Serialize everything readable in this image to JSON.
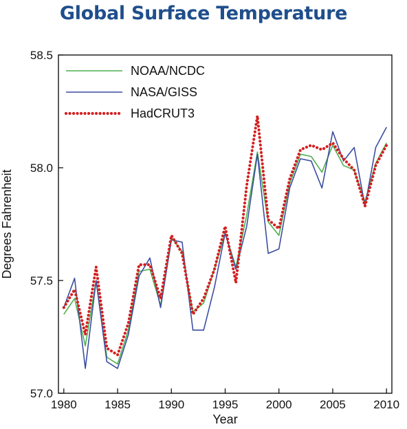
{
  "chart_data": {
    "type": "line",
    "title": "Global Surface Temperature",
    "xlabel": "Year",
    "ylabel": "Degrees Fahrenheit",
    "xlim": [
      1979.5,
      2010.5
    ],
    "ylim": [
      57.0,
      58.5
    ],
    "x_ticks": [
      1980,
      1985,
      1990,
      1995,
      2000,
      2005,
      2010
    ],
    "y_ticks": [
      57.0,
      57.5,
      58.0,
      58.5
    ],
    "x_tick_labels": [
      "1980",
      "1985",
      "1990",
      "1995",
      "2000",
      "2005",
      "2010"
    ],
    "y_tick_labels": [
      "57.0",
      "57.5",
      "58.0",
      "58.5"
    ],
    "legend_position": "top-left",
    "x": [
      1980,
      1981,
      1982,
      1983,
      1984,
      1985,
      1986,
      1987,
      1988,
      1989,
      1990,
      1991,
      1992,
      1993,
      1994,
      1995,
      1996,
      1997,
      1998,
      1999,
      2000,
      2001,
      2002,
      2003,
      2004,
      2005,
      2006,
      2007,
      2008,
      2009,
      2010
    ],
    "series": [
      {
        "name": "NOAA/NCDC",
        "color": "#4caf50",
        "style": "solid",
        "values": [
          57.35,
          57.42,
          57.21,
          57.5,
          57.16,
          57.13,
          57.28,
          57.54,
          57.55,
          57.39,
          57.69,
          57.63,
          57.36,
          57.4,
          57.55,
          57.71,
          57.56,
          57.79,
          58.07,
          57.76,
          57.7,
          57.93,
          58.06,
          58.05,
          57.98,
          58.1,
          58.01,
          57.99,
          57.85,
          58.02,
          58.11
        ]
      },
      {
        "name": "NASA/GISS",
        "color": "#3b4da0",
        "style": "solid",
        "values": [
          57.38,
          57.51,
          57.11,
          57.5,
          57.14,
          57.11,
          57.26,
          57.52,
          57.6,
          57.38,
          57.68,
          57.67,
          57.28,
          57.28,
          57.47,
          57.71,
          57.55,
          57.74,
          58.06,
          57.62,
          57.64,
          57.91,
          58.04,
          58.03,
          57.91,
          58.16,
          58.03,
          58.09,
          57.83,
          58.09,
          58.18
        ]
      },
      {
        "name": "HadCRUT3",
        "color": "#d42020",
        "style": "dotted",
        "values": [
          57.38,
          57.46,
          57.26,
          57.56,
          57.2,
          57.17,
          57.31,
          57.57,
          57.57,
          57.42,
          57.7,
          57.62,
          57.35,
          57.42,
          57.55,
          57.74,
          57.49,
          57.92,
          58.23,
          57.77,
          57.73,
          57.95,
          58.08,
          58.1,
          58.08,
          58.11,
          58.04,
          57.99,
          57.83,
          58.01,
          58.1
        ]
      }
    ]
  }
}
